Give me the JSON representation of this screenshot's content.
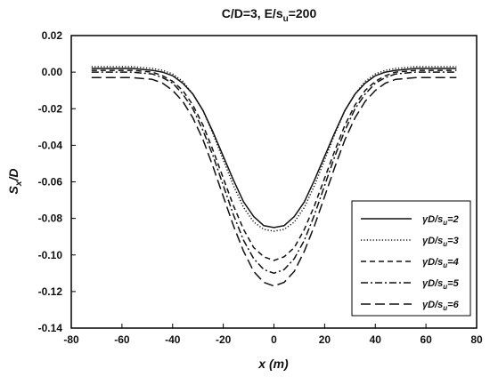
{
  "chart_data": {
    "type": "line",
    "title": "C/D=3, E/s",
    "title_sub": "u",
    "title_tail": "=200",
    "xlabel": "x (m)",
    "ylabel": "S",
    "ylabel_sub": "x",
    "ylabel_tail": "/D",
    "xlim": [
      -80,
      80
    ],
    "ylim": [
      -0.14,
      0.02
    ],
    "xticks": [
      "-80",
      "-60",
      "-40",
      "-20",
      "0",
      "20",
      "40",
      "60",
      "80"
    ],
    "yticks": [
      "0.02",
      "0.00",
      "-0.02",
      "-0.04",
      "-0.06",
      "-0.08",
      "-0.10",
      "-0.12",
      "-0.14"
    ],
    "legend_position": "bottom-right",
    "x": [
      -72,
      -64,
      -56,
      -48,
      -44,
      -40,
      -36,
      -32,
      -28,
      -24,
      -20,
      -16,
      -12,
      -8,
      -4,
      0,
      4,
      8,
      12,
      16,
      20,
      24,
      28,
      32,
      36,
      40,
      44,
      48,
      56,
      64,
      72
    ],
    "series": [
      {
        "name": "γD/s",
        "name_sub": "u",
        "name_tail": "=2",
        "dash": "solid",
        "values": [
          0.002,
          0.002,
          0.002,
          0.001,
          0.0,
          -0.002,
          -0.006,
          -0.012,
          -0.021,
          -0.033,
          -0.046,
          -0.059,
          -0.071,
          -0.079,
          -0.084,
          -0.085,
          -0.084,
          -0.079,
          -0.071,
          -0.059,
          -0.046,
          -0.033,
          -0.021,
          -0.012,
          -0.006,
          -0.002,
          0.0,
          0.001,
          0.002,
          0.002,
          0.002
        ]
      },
      {
        "name": "γD/s",
        "name_sub": "u",
        "name_tail": "=3",
        "dash": "dotted",
        "values": [
          0.003,
          0.003,
          0.003,
          0.002,
          0.001,
          -0.001,
          -0.005,
          -0.012,
          -0.021,
          -0.034,
          -0.048,
          -0.062,
          -0.074,
          -0.082,
          -0.086,
          -0.087,
          -0.086,
          -0.082,
          -0.074,
          -0.062,
          -0.048,
          -0.034,
          -0.021,
          -0.012,
          -0.005,
          -0.001,
          0.001,
          0.002,
          0.003,
          0.003,
          0.003
        ]
      },
      {
        "name": "γD/s",
        "name_sub": "u",
        "name_tail": "=4",
        "dash": "short-dash",
        "values": [
          0.001,
          0.001,
          0.001,
          0.0,
          -0.002,
          -0.005,
          -0.01,
          -0.018,
          -0.029,
          -0.043,
          -0.058,
          -0.073,
          -0.086,
          -0.096,
          -0.101,
          -0.103,
          -0.101,
          -0.096,
          -0.086,
          -0.073,
          -0.058,
          -0.043,
          -0.029,
          -0.018,
          -0.01,
          -0.005,
          -0.002,
          0.0,
          0.001,
          0.001,
          0.001
        ]
      },
      {
        "name": "γD/s",
        "name_sub": "u",
        "name_tail": "=5",
        "dash": "dash-dot",
        "values": [
          0.0,
          0.0,
          0.0,
          -0.001,
          -0.003,
          -0.006,
          -0.012,
          -0.02,
          -0.032,
          -0.046,
          -0.062,
          -0.078,
          -0.092,
          -0.102,
          -0.108,
          -0.11,
          -0.108,
          -0.102,
          -0.092,
          -0.078,
          -0.062,
          -0.046,
          -0.032,
          -0.02,
          -0.012,
          -0.006,
          -0.003,
          -0.001,
          0.0,
          0.0,
          0.0
        ]
      },
      {
        "name": "γD/s",
        "name_sub": "u",
        "name_tail": "=6",
        "dash": "long-dash",
        "values": [
          -0.003,
          -0.003,
          -0.003,
          -0.004,
          -0.006,
          -0.01,
          -0.016,
          -0.025,
          -0.037,
          -0.052,
          -0.068,
          -0.084,
          -0.098,
          -0.109,
          -0.115,
          -0.117,
          -0.115,
          -0.109,
          -0.098,
          -0.084,
          -0.068,
          -0.052,
          -0.037,
          -0.025,
          -0.016,
          -0.01,
          -0.006,
          -0.004,
          -0.003,
          -0.003,
          -0.003
        ]
      }
    ]
  }
}
